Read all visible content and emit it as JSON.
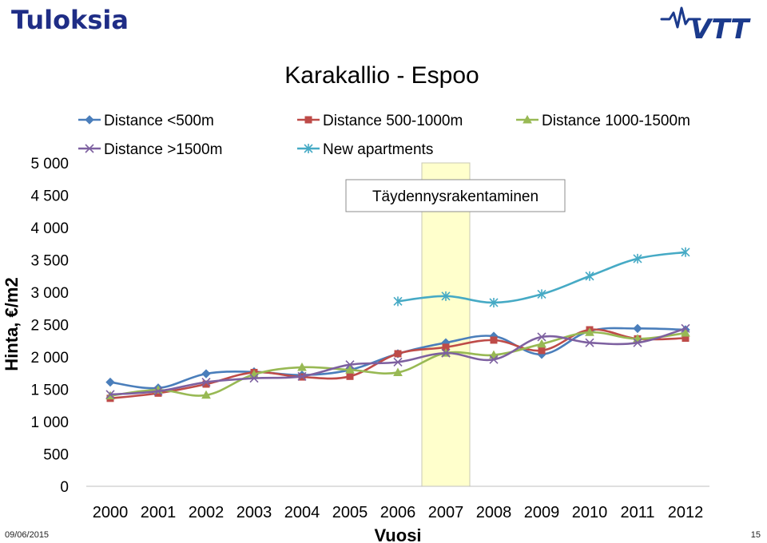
{
  "slide": {
    "title": "Tuloksia",
    "date": "09/06/2015",
    "page_number": "15",
    "logo_text": "VTT"
  },
  "colors": {
    "title": "#1f2d86",
    "logo": "#1b3a8c",
    "highlight_fill": "#ffffcc",
    "highlight_border": "#c8c8b4"
  },
  "chart_data": {
    "type": "line",
    "title": "Karakallio - Espoo",
    "xlabel": "Vuosi",
    "ylabel": "Hinta, €/m2",
    "x": [
      2000,
      2001,
      2002,
      2003,
      2004,
      2005,
      2006,
      2007,
      2008,
      2009,
      2010,
      2011,
      2012
    ],
    "ylim": [
      0,
      5000
    ],
    "yticks": [
      0,
      500,
      1000,
      1500,
      2000,
      2500,
      3000,
      3500,
      4000,
      4500,
      5000
    ],
    "ytick_labels": [
      "0",
      "500",
      "1 000",
      "1 500",
      "2 000",
      "2 500",
      "3 000",
      "3 500",
      "4 000",
      "4 500",
      "5 000"
    ],
    "legend_position": "top",
    "highlight": {
      "x_range": [
        2006.5,
        2007.5
      ],
      "label": "Täydennysrakentaminen"
    },
    "series": [
      {
        "name": "Distance <500m",
        "color": "#4a7ebb",
        "marker": "diamond",
        "values": [
          1610,
          1520,
          1740,
          1770,
          1720,
          1800,
          2050,
          2220,
          2320,
          2040,
          2400,
          2440,
          2420
        ]
      },
      {
        "name": "Distance 500-1000m",
        "color": "#be4b48",
        "marker": "square",
        "values": [
          1360,
          1440,
          1580,
          1760,
          1690,
          1700,
          2050,
          2150,
          2260,
          2100,
          2420,
          2280,
          2290
        ]
      },
      {
        "name": "Distance 1000-1500m",
        "color": "#98b954",
        "marker": "triangle",
        "values": [
          1400,
          1490,
          1410,
          1730,
          1840,
          1800,
          1760,
          2060,
          2030,
          2200,
          2380,
          2280,
          2370
        ]
      },
      {
        "name": "Distance >1500m",
        "color": "#7d60a0",
        "marker": "x",
        "values": [
          1420,
          1470,
          1610,
          1670,
          1700,
          1880,
          1920,
          2060,
          1960,
          2310,
          2220,
          2220,
          2440
        ]
      },
      {
        "name": "New apartments",
        "color": "#46aac5",
        "marker": "star",
        "values": [
          null,
          null,
          null,
          null,
          null,
          null,
          2860,
          2940,
          2840,
          2970,
          3250,
          3520,
          3620
        ]
      }
    ]
  }
}
